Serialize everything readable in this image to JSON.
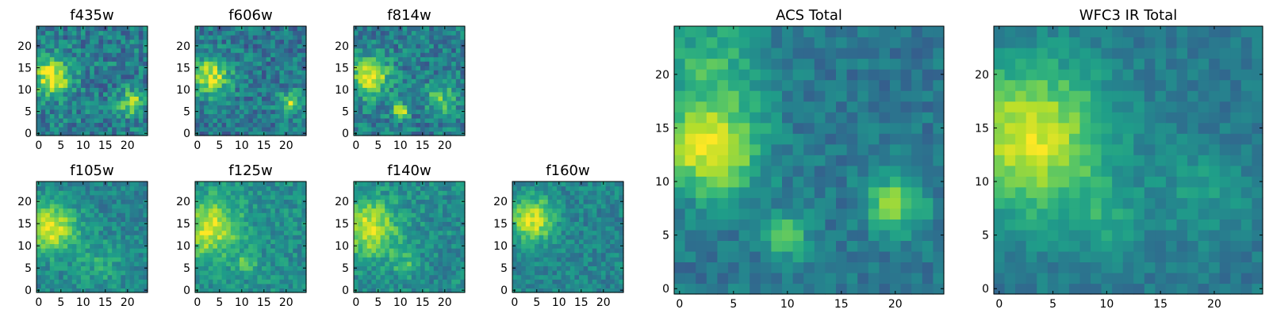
{
  "figure_title": "",
  "colormap": {
    "name": "viridis",
    "stops": [
      "#440154",
      "#482878",
      "#3e4989",
      "#31688e",
      "#26828e",
      "#1f9e89",
      "#35b779",
      "#6ece58",
      "#b5de2b",
      "#fde725"
    ]
  },
  "chart_data": [
    {
      "type": "heatmap",
      "id": "f435w",
      "title": "f435w",
      "xlim": [
        0,
        24
      ],
      "ylim": [
        0,
        24
      ],
      "xticks": [
        0,
        5,
        10,
        15,
        20
      ],
      "yticks": [
        0,
        5,
        10,
        15,
        20
      ],
      "grid_size": 25,
      "background_level": 0.42,
      "noise": 0.18,
      "blobs": [
        {
          "x": 3,
          "y": 13,
          "r": 3.0,
          "amp": 0.55
        },
        {
          "x": 21,
          "y": 7,
          "r": 2.0,
          "amp": 0.45
        }
      ],
      "grid": false
    },
    {
      "type": "heatmap",
      "id": "f606w",
      "title": "f606w",
      "xlim": [
        0,
        24
      ],
      "ylim": [
        0,
        24
      ],
      "xticks": [
        0,
        5,
        10,
        15,
        20
      ],
      "yticks": [
        0,
        5,
        10,
        15,
        20
      ],
      "grid_size": 25,
      "background_level": 0.4,
      "noise": 0.17,
      "blobs": [
        {
          "x": 3,
          "y": 13,
          "r": 3.0,
          "amp": 0.55
        },
        {
          "x": 21,
          "y": 7,
          "r": 1.8,
          "amp": 0.45
        }
      ],
      "grid": false
    },
    {
      "type": "heatmap",
      "id": "f814w",
      "title": "f814w",
      "xlim": [
        0,
        24
      ],
      "ylim": [
        0,
        24
      ],
      "xticks": [
        0,
        5,
        10,
        15,
        20
      ],
      "yticks": [
        0,
        5,
        10,
        15,
        20
      ],
      "grid_size": 25,
      "background_level": 0.42,
      "noise": 0.17,
      "blobs": [
        {
          "x": 3,
          "y": 13,
          "r": 3.2,
          "amp": 0.55
        },
        {
          "x": 10,
          "y": 5,
          "r": 1.2,
          "amp": 0.6
        },
        {
          "x": 19,
          "y": 8,
          "r": 2.5,
          "amp": 0.3
        }
      ],
      "grid": false
    },
    {
      "type": "heatmap",
      "id": "f105w",
      "title": "f105w",
      "xlim": [
        0,
        24
      ],
      "ylim": [
        0,
        24
      ],
      "xticks": [
        0,
        5,
        10,
        15,
        20
      ],
      "yticks": [
        0,
        5,
        10,
        15,
        20
      ],
      "grid_size": 25,
      "background_level": 0.45,
      "noise": 0.12,
      "blobs": [
        {
          "x": 3,
          "y": 14,
          "r": 4.0,
          "amp": 0.5
        },
        {
          "x": 14,
          "y": 6,
          "r": 4.0,
          "amp": 0.15
        }
      ],
      "grid": false
    },
    {
      "type": "heatmap",
      "id": "f125w",
      "title": "f125w",
      "xlim": [
        0,
        24
      ],
      "ylim": [
        0,
        24
      ],
      "xticks": [
        0,
        5,
        10,
        15,
        20
      ],
      "yticks": [
        0,
        5,
        10,
        15,
        20
      ],
      "grid_size": 25,
      "background_level": 0.5,
      "noise": 0.12,
      "blobs": [
        {
          "x": 3,
          "y": 14,
          "r": 4.5,
          "amp": 0.45
        },
        {
          "x": 11,
          "y": 6,
          "r": 1.5,
          "amp": 0.25
        }
      ],
      "grid": false
    },
    {
      "type": "heatmap",
      "id": "f140w",
      "title": "f140w",
      "xlim": [
        0,
        24
      ],
      "ylim": [
        0,
        24
      ],
      "xticks": [
        0,
        5,
        10,
        15,
        20
      ],
      "yticks": [
        0,
        5,
        10,
        15,
        20
      ],
      "grid_size": 25,
      "background_level": 0.48,
      "noise": 0.13,
      "blobs": [
        {
          "x": 3,
          "y": 14,
          "r": 4.5,
          "amp": 0.45
        },
        {
          "x": 11,
          "y": 6,
          "r": 2.0,
          "amp": 0.2
        }
      ],
      "grid": false
    },
    {
      "type": "heatmap",
      "id": "f160w",
      "title": "f160w",
      "xlim": [
        0,
        24
      ],
      "ylim": [
        0,
        24
      ],
      "xticks": [
        0,
        5,
        10,
        15,
        20
      ],
      "yticks": [
        0,
        5,
        10,
        15,
        20
      ],
      "grid_size": 25,
      "background_level": 0.45,
      "noise": 0.12,
      "blobs": [
        {
          "x": 4,
          "y": 16,
          "r": 3.5,
          "amp": 0.5
        }
      ],
      "grid": false
    },
    {
      "type": "heatmap",
      "id": "acs",
      "title": "ACS Total",
      "xlim": [
        0,
        24
      ],
      "ylim": [
        0,
        24
      ],
      "xticks": [
        0,
        5,
        10,
        15,
        20
      ],
      "yticks": [
        0,
        5,
        10,
        15,
        20
      ],
      "grid_size": 25,
      "background_level": 0.4,
      "noise": 0.1,
      "blobs": [
        {
          "x": 3,
          "y": 13,
          "r": 3.0,
          "amp": 0.6
        },
        {
          "x": 20,
          "y": 8,
          "r": 1.8,
          "amp": 0.45
        },
        {
          "x": 10,
          "y": 5,
          "r": 1.3,
          "amp": 0.45
        },
        {
          "x": 3,
          "y": 21,
          "r": 3.5,
          "amp": 0.25
        }
      ],
      "grid": false
    },
    {
      "type": "heatmap",
      "id": "wfc3",
      "title": "WFC3 IR Total",
      "xlim": [
        0,
        24
      ],
      "ylim": [
        0,
        24
      ],
      "xticks": [
        0,
        5,
        10,
        15,
        20
      ],
      "yticks": [
        0,
        5,
        10,
        15,
        20
      ],
      "grid_size": 25,
      "background_level": 0.4,
      "noise": 0.08,
      "blobs": [
        {
          "x": 3,
          "y": 14,
          "r": 5.0,
          "amp": 0.55
        },
        {
          "x": 19,
          "y": 9,
          "r": 3.0,
          "amp": 0.15
        },
        {
          "x": 10,
          "y": 6,
          "r": 2.5,
          "amp": 0.15
        }
      ],
      "grid": false
    }
  ]
}
